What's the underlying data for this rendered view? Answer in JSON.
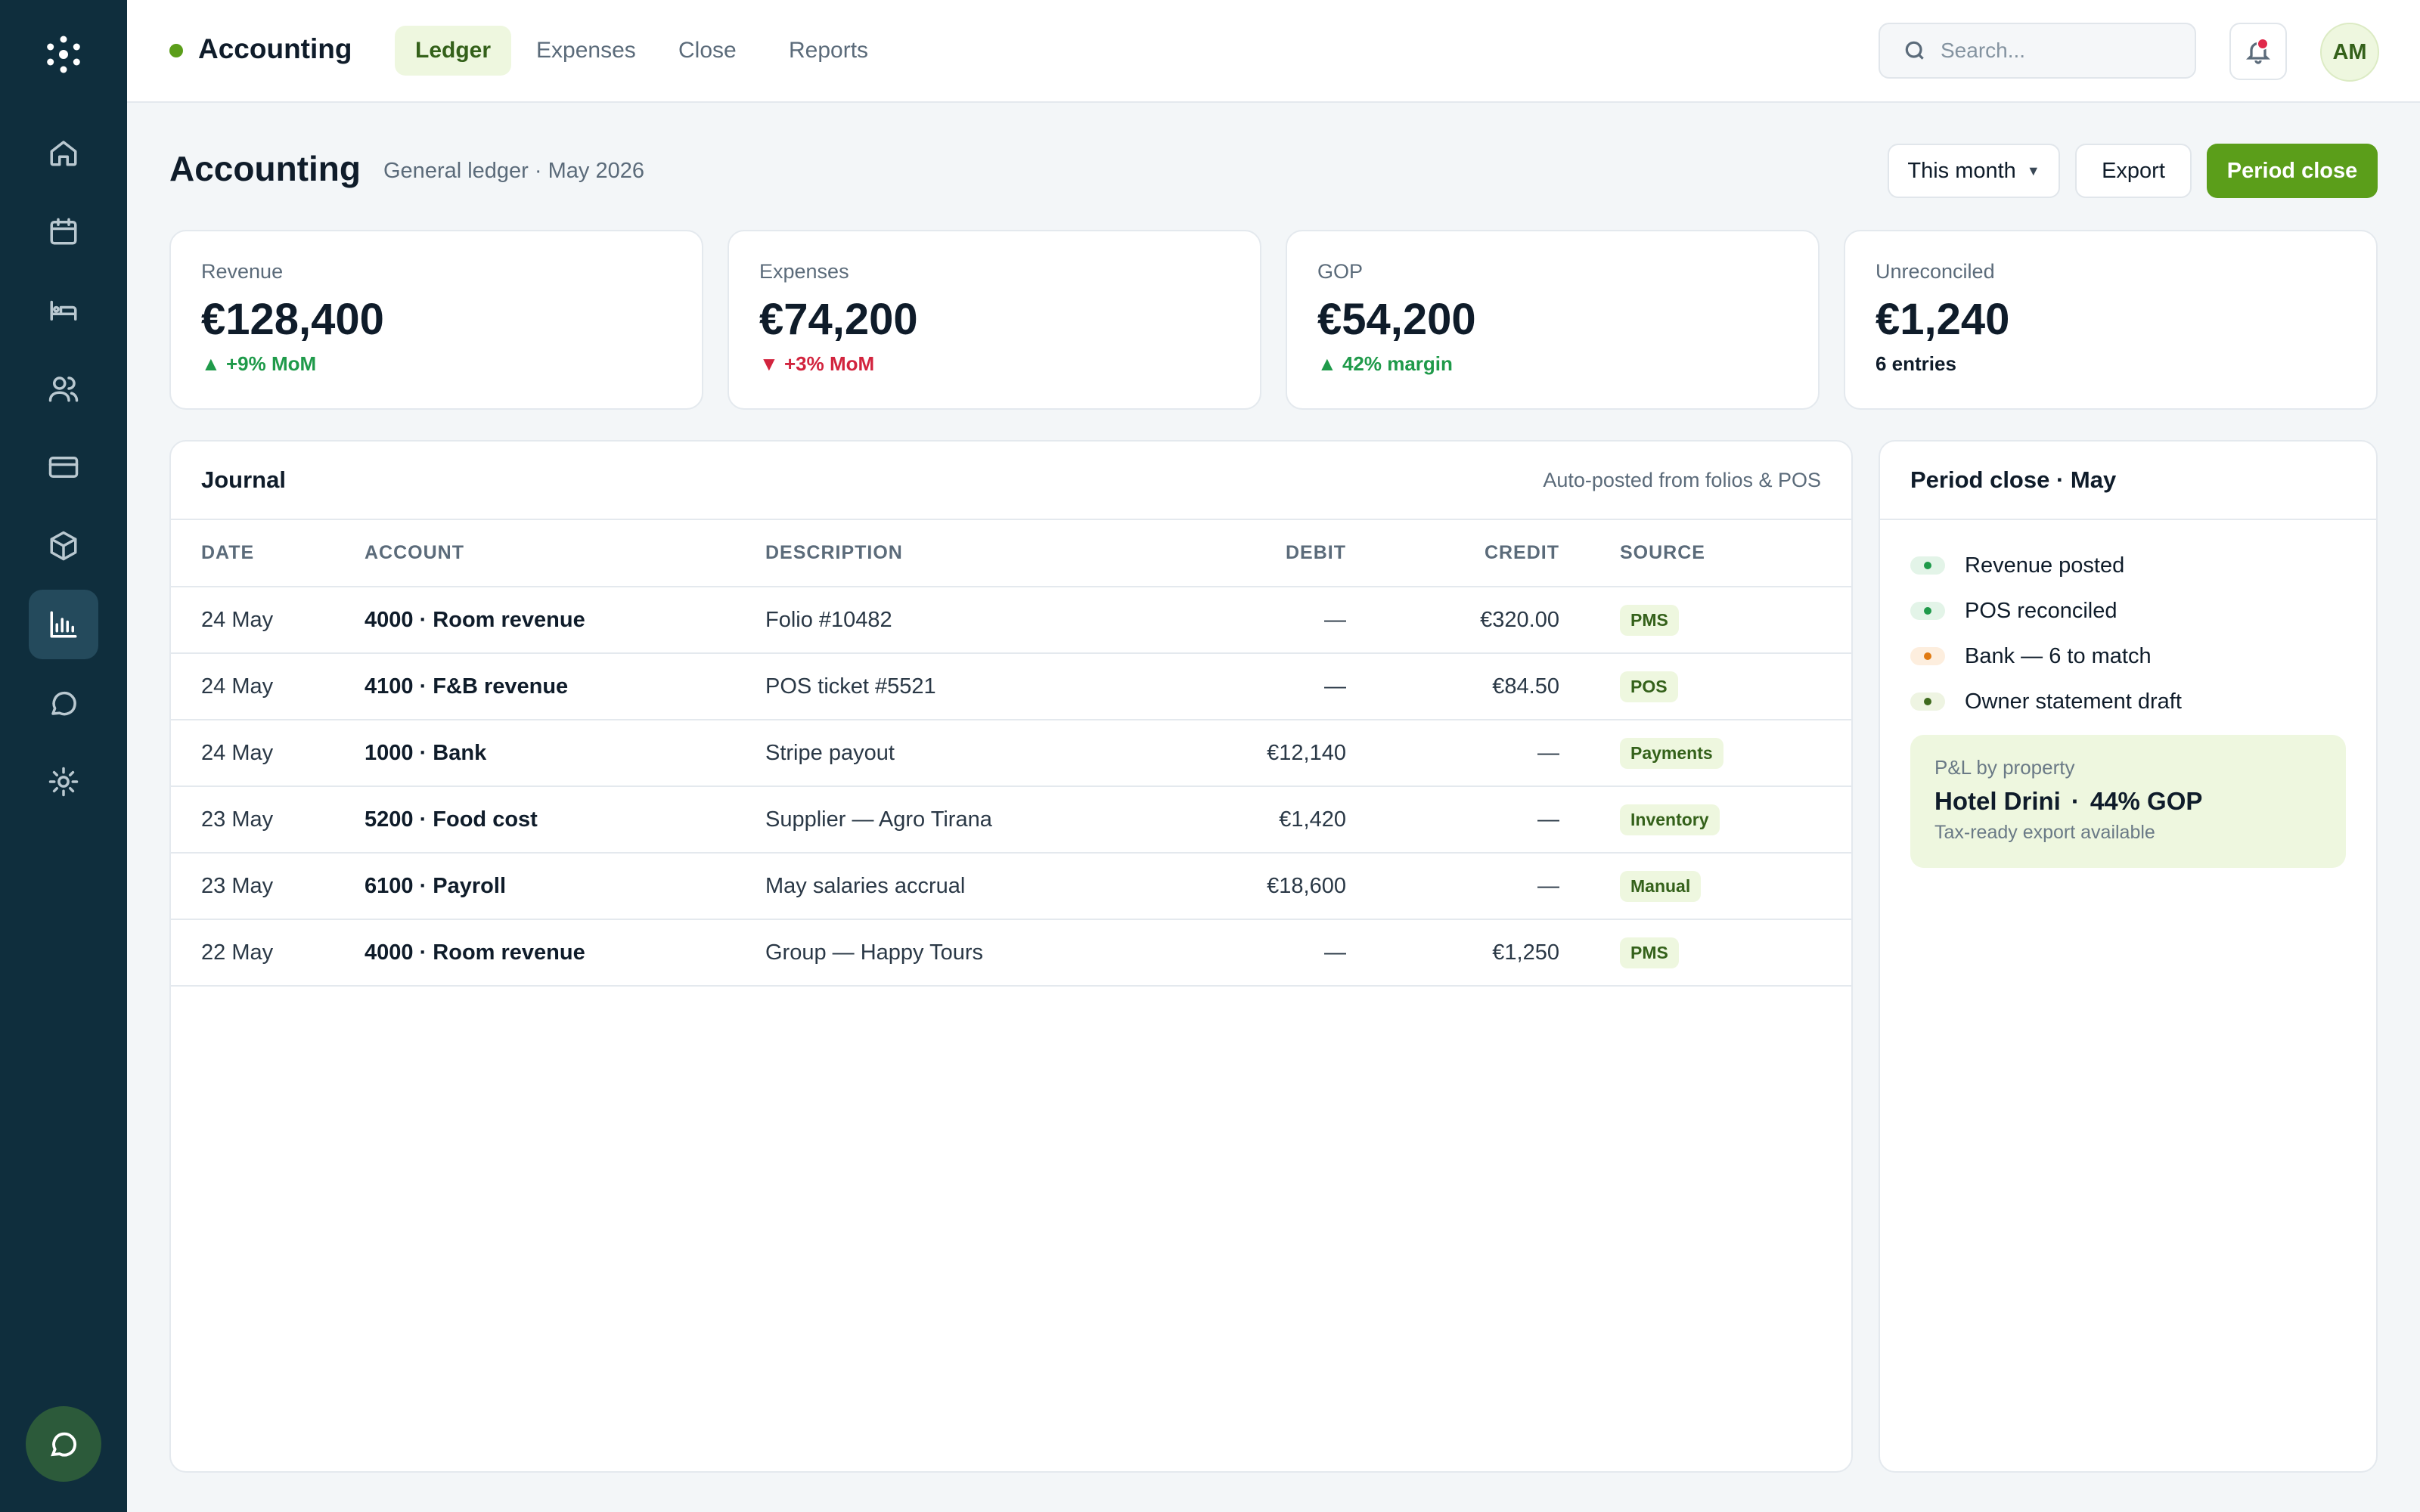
{
  "app": {
    "title": "Accounting"
  },
  "tabs": [
    {
      "label": "Ledger",
      "active": true
    },
    {
      "label": "Expenses",
      "active": false
    },
    {
      "label": "Close",
      "active": false
    },
    {
      "label": "Reports",
      "active": false
    }
  ],
  "search": {
    "placeholder": "Search..."
  },
  "user": {
    "initials": "AM"
  },
  "sidebar": {
    "icons": [
      "home-icon",
      "calendar-icon",
      "bed-icon",
      "users-icon",
      "card-icon",
      "box-icon",
      "chart-icon",
      "message-icon",
      "settings-icon"
    ],
    "active": "chart-icon"
  },
  "page": {
    "title": "Accounting",
    "subtitle": "General ledger · May 2026",
    "period_select": "This month",
    "export_label": "Export",
    "period_close_label": "Period close"
  },
  "kpis": [
    {
      "label": "Revenue",
      "value": "€128,400",
      "delta": "+9% MoM",
      "trend": "up"
    },
    {
      "label": "Expenses",
      "value": "€74,200",
      "delta": "+3% MoM",
      "trend": "down"
    },
    {
      "label": "GOP",
      "value": "€54,200",
      "delta": "42% margin",
      "trend": "up"
    },
    {
      "label": "Unreconciled",
      "value": "€1,240",
      "delta": "6 entries",
      "trend": "neutral"
    }
  ],
  "journal": {
    "title": "Journal",
    "note": "Auto-posted from folios & POS",
    "columns": [
      "DATE",
      "ACCOUNT",
      "DESCRIPTION",
      "DEBIT",
      "CREDIT",
      "SOURCE"
    ],
    "rows": [
      {
        "date": "24 May",
        "account": "4000 · Room revenue",
        "description": "Folio #10482",
        "debit": "—",
        "credit": "€320.00",
        "source": "PMS"
      },
      {
        "date": "24 May",
        "account": "4100 · F&B revenue",
        "description": "POS ticket #5521",
        "debit": "—",
        "credit": "€84.50",
        "source": "POS"
      },
      {
        "date": "24 May",
        "account": "1000 · Bank",
        "description": "Stripe payout",
        "debit": "€12,140",
        "credit": "—",
        "source": "Payments"
      },
      {
        "date": "23 May",
        "account": "5200 · Food cost",
        "description": "Supplier — Agro Tirana",
        "debit": "€1,420",
        "credit": "—",
        "source": "Inventory"
      },
      {
        "date": "23 May",
        "account": "6100 · Payroll",
        "description": "May salaries accrual",
        "debit": "€18,600",
        "credit": "—",
        "source": "Manual"
      },
      {
        "date": "22 May",
        "account": "4000 · Room revenue",
        "description": "Group — Happy Tours",
        "debit": "—",
        "credit": "€1,250",
        "source": "PMS"
      }
    ]
  },
  "period_close": {
    "title": "Period close · May",
    "items": [
      {
        "label": "Revenue posted",
        "status": "green"
      },
      {
        "label": "POS reconciled",
        "status": "green"
      },
      {
        "label": "Bank — 6 to match",
        "status": "orange"
      },
      {
        "label": "Owner statement draft",
        "status": "olive"
      }
    ],
    "pnl": {
      "label": "P&L by property",
      "property": "Hotel Drini",
      "sep": "·",
      "gop": "44% GOP",
      "note": "Tax-ready export available"
    }
  },
  "colors": {
    "accent": "#5b9e1a",
    "sidebar": "#0f2e3d",
    "up": "#1f9a4a",
    "down": "#d2243e",
    "warning": "#e07a12"
  }
}
